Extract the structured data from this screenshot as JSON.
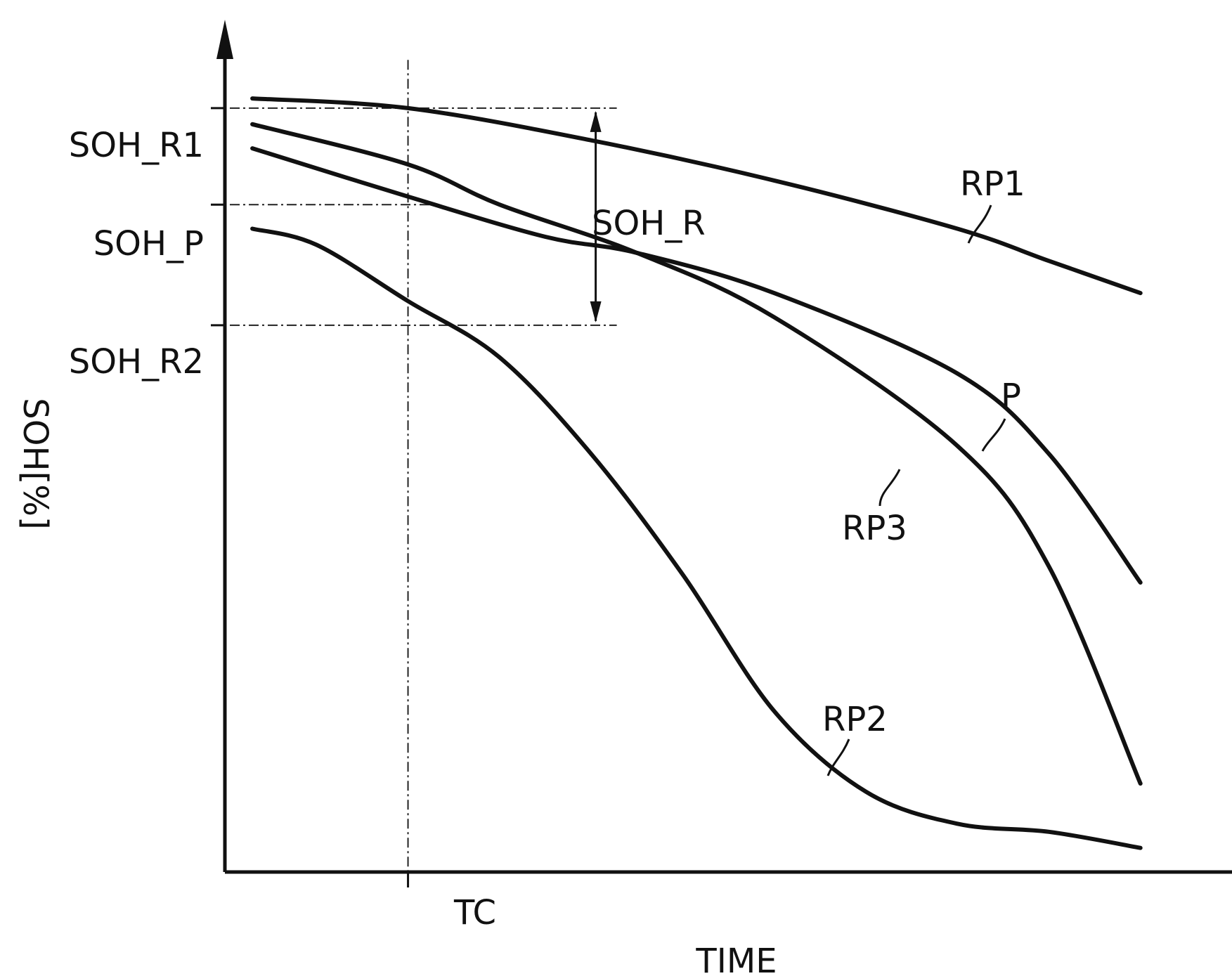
{
  "chart_data": {
    "type": "line",
    "title": "",
    "xlabel": "TIME",
    "ylabel": "SOH[%]",
    "x_tick_labels": [
      "TC"
    ],
    "y_tick_labels": [
      "SOH_R1",
      "SOH_P",
      "SOH_R2"
    ],
    "annotations": [
      "SOH_R"
    ],
    "series": [
      {
        "name": "RP1",
        "x": [
          0.03,
          0.2,
          0.4,
          0.6,
          0.8,
          0.9,
          1.0
        ],
        "values": [
          0.962,
          0.95,
          0.91,
          0.86,
          0.8,
          0.76,
          0.72
        ]
      },
      {
        "name": "P",
        "x": [
          0.03,
          0.2,
          0.35,
          0.45,
          0.6,
          0.8,
          0.9,
          1.0
        ],
        "values": [
          0.9,
          0.84,
          0.79,
          0.77,
          0.72,
          0.62,
          0.52,
          0.36
        ]
      },
      {
        "name": "RP3",
        "x": [
          0.03,
          0.2,
          0.3,
          0.45,
          0.6,
          0.8,
          0.9,
          1.0
        ],
        "values": [
          0.93,
          0.88,
          0.83,
          0.77,
          0.69,
          0.53,
          0.38,
          0.11
        ]
      },
      {
        "name": "RP2",
        "x": [
          0.03,
          0.1,
          0.2,
          0.3,
          0.4,
          0.5,
          0.6,
          0.7,
          0.8,
          0.9,
          1.0
        ],
        "values": [
          0.8,
          0.78,
          0.71,
          0.64,
          0.52,
          0.37,
          0.2,
          0.1,
          0.06,
          0.05,
          0.03
        ]
      }
    ],
    "reference_values": {
      "SOH_R1": 0.95,
      "SOH_P": 0.83,
      "SOH_R2": 0.68,
      "TC": 0.2
    },
    "xlim": [
      0,
      1.1
    ],
    "ylim": [
      0,
      1.06
    ],
    "grid": false,
    "legend": "none"
  }
}
